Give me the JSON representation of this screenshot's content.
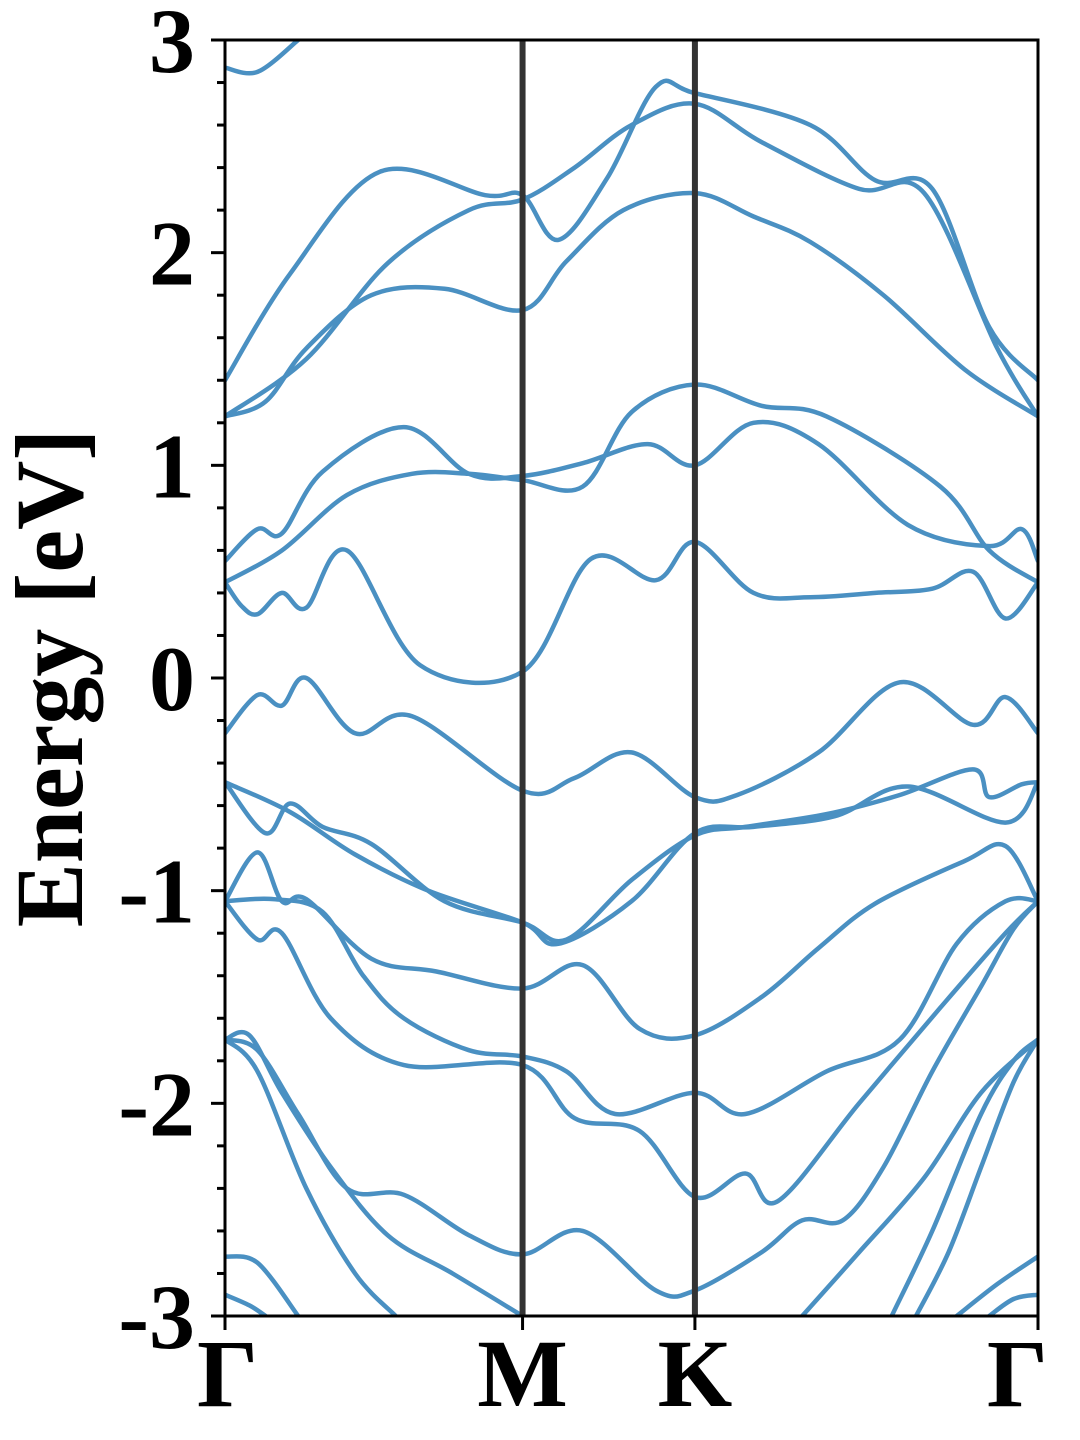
{
  "chart_data": {
    "type": "line",
    "title": "",
    "xlabel": "",
    "ylabel": "Energy [eV]",
    "ylim": [
      -3,
      3
    ],
    "xlim": [
      0,
      1
    ],
    "x_ticks": [
      {
        "label": "Γ",
        "value": 0.0
      },
      {
        "label": "M",
        "value": 0.366
      },
      {
        "label": "K",
        "value": 0.578
      },
      {
        "label": "Γ",
        "value": 1.0
      }
    ],
    "y_ticks": [
      {
        "label": "3",
        "value": 3
      },
      {
        "label": "2",
        "value": 2
      },
      {
        "label": "1",
        "value": 1
      },
      {
        "label": "0",
        "value": 0
      },
      {
        "label": "-1",
        "value": -1
      },
      {
        "label": "-2",
        "value": -2
      },
      {
        "label": "-3",
        "value": -3
      }
    ],
    "y_minor_step": 0.2,
    "grid": false,
    "colors": {
      "band": "#4a90c2",
      "kline": "#333333",
      "axis": "#000000"
    },
    "series": [
      {
        "values": [
          [
            0.0,
            2.87
          ],
          [
            0.04,
            2.85
          ],
          [
            0.09,
            3.0
          ]
        ]
      },
      {
        "values": [
          [
            0.0,
            1.4
          ],
          [
            0.08,
            1.9
          ],
          [
            0.19,
            2.38
          ],
          [
            0.32,
            2.27
          ],
          [
            0.366,
            2.27
          ],
          [
            0.41,
            2.06
          ],
          [
            0.47,
            2.35
          ],
          [
            0.53,
            2.78
          ],
          [
            0.578,
            2.75
          ],
          [
            0.72,
            2.6
          ],
          [
            0.8,
            2.34
          ],
          [
            0.87,
            2.3
          ],
          [
            0.94,
            1.65
          ],
          [
            1.0,
            1.4
          ]
        ]
      },
      {
        "values": [
          [
            0.0,
            1.23
          ],
          [
            0.1,
            1.5
          ],
          [
            0.2,
            1.95
          ],
          [
            0.3,
            2.2
          ],
          [
            0.366,
            2.25
          ],
          [
            0.43,
            2.4
          ],
          [
            0.5,
            2.6
          ],
          [
            0.578,
            2.7
          ],
          [
            0.66,
            2.52
          ],
          [
            0.78,
            2.3
          ],
          [
            0.86,
            2.28
          ],
          [
            0.95,
            1.55
          ],
          [
            1.0,
            1.23
          ]
        ]
      },
      {
        "values": [
          [
            0.0,
            1.23
          ],
          [
            0.05,
            1.3
          ],
          [
            0.1,
            1.55
          ],
          [
            0.18,
            1.8
          ],
          [
            0.27,
            1.83
          ],
          [
            0.366,
            1.73
          ],
          [
            0.42,
            1.96
          ],
          [
            0.49,
            2.2
          ],
          [
            0.578,
            2.28
          ],
          [
            0.65,
            2.17
          ],
          [
            0.72,
            2.05
          ],
          [
            0.81,
            1.8
          ],
          [
            0.91,
            1.45
          ],
          [
            1.0,
            1.23
          ]
        ]
      },
      {
        "values": [
          [
            0.0,
            0.55
          ],
          [
            0.04,
            0.7
          ],
          [
            0.07,
            0.68
          ],
          [
            0.12,
            0.97
          ],
          [
            0.22,
            1.18
          ],
          [
            0.3,
            0.96
          ],
          [
            0.366,
            0.95
          ],
          [
            0.44,
            1.01
          ],
          [
            0.52,
            1.1
          ],
          [
            0.578,
            1.0
          ],
          [
            0.65,
            1.2
          ],
          [
            0.73,
            1.1
          ],
          [
            0.84,
            0.72
          ],
          [
            0.94,
            0.62
          ],
          [
            0.98,
            0.7
          ],
          [
            1.0,
            0.55
          ]
        ]
      },
      {
        "values": [
          [
            0.0,
            0.45
          ],
          [
            0.07,
            0.6
          ],
          [
            0.15,
            0.86
          ],
          [
            0.23,
            0.96
          ],
          [
            0.3,
            0.96
          ],
          [
            0.366,
            0.93
          ],
          [
            0.44,
            0.9
          ],
          [
            0.5,
            1.25
          ],
          [
            0.578,
            1.38
          ],
          [
            0.66,
            1.28
          ],
          [
            0.74,
            1.23
          ],
          [
            0.88,
            0.9
          ],
          [
            0.94,
            0.6
          ],
          [
            1.0,
            0.45
          ]
        ]
      },
      {
        "values": [
          [
            0.0,
            0.45
          ],
          [
            0.02,
            0.34
          ],
          [
            0.04,
            0.3
          ],
          [
            0.07,
            0.4
          ],
          [
            0.1,
            0.33
          ],
          [
            0.15,
            0.6
          ],
          [
            0.24,
            0.06
          ],
          [
            0.366,
            0.03
          ],
          [
            0.45,
            0.56
          ],
          [
            0.53,
            0.46
          ],
          [
            0.578,
            0.64
          ],
          [
            0.65,
            0.4
          ],
          [
            0.72,
            0.38
          ],
          [
            0.8,
            0.4
          ],
          [
            0.87,
            0.42
          ],
          [
            0.92,
            0.5
          ],
          [
            0.96,
            0.28
          ],
          [
            1.0,
            0.45
          ]
        ]
      },
      {
        "values": [
          [
            0.0,
            -0.26
          ],
          [
            0.04,
            -0.08
          ],
          [
            0.07,
            -0.13
          ],
          [
            0.1,
            0.0
          ],
          [
            0.16,
            -0.26
          ],
          [
            0.23,
            -0.18
          ],
          [
            0.366,
            -0.53
          ],
          [
            0.43,
            -0.47
          ],
          [
            0.5,
            -0.35
          ],
          [
            0.578,
            -0.56
          ],
          [
            0.63,
            -0.55
          ],
          [
            0.73,
            -0.35
          ],
          [
            0.83,
            -0.02
          ],
          [
            0.92,
            -0.22
          ],
          [
            0.96,
            -0.09
          ],
          [
            1.0,
            -0.26
          ]
        ]
      },
      {
        "values": [
          [
            0.0,
            -0.49
          ],
          [
            0.05,
            -0.73
          ],
          [
            0.08,
            -0.59
          ],
          [
            0.12,
            -0.7
          ],
          [
            0.18,
            -0.78
          ],
          [
            0.27,
            -1.05
          ],
          [
            0.366,
            -1.15
          ],
          [
            0.42,
            -1.23
          ],
          [
            0.5,
            -0.95
          ],
          [
            0.578,
            -0.74
          ],
          [
            0.64,
            -0.7
          ],
          [
            0.74,
            -0.64
          ],
          [
            0.83,
            -0.55
          ],
          [
            0.92,
            -0.43
          ],
          [
            0.94,
            -0.56
          ],
          [
            0.98,
            -0.5
          ],
          [
            1.0,
            -0.49
          ]
        ]
      },
      {
        "values": [
          [
            0.0,
            -0.49
          ],
          [
            0.08,
            -0.63
          ],
          [
            0.16,
            -0.83
          ],
          [
            0.25,
            -1.0
          ],
          [
            0.366,
            -1.15
          ],
          [
            0.41,
            -1.25
          ],
          [
            0.5,
            -1.05
          ],
          [
            0.578,
            -0.73
          ],
          [
            0.65,
            -0.7
          ],
          [
            0.75,
            -0.65
          ],
          [
            0.84,
            -0.51
          ],
          [
            0.96,
            -0.68
          ],
          [
            1.0,
            -0.49
          ]
        ]
      },
      {
        "values": [
          [
            0.0,
            -1.05
          ],
          [
            0.04,
            -0.82
          ],
          [
            0.07,
            -1.05
          ],
          [
            0.1,
            -1.04
          ],
          [
            0.18,
            -1.32
          ],
          [
            0.26,
            -1.38
          ],
          [
            0.366,
            -1.46
          ],
          [
            0.44,
            -1.35
          ],
          [
            0.51,
            -1.65
          ],
          [
            0.578,
            -1.68
          ],
          [
            0.66,
            -1.5
          ],
          [
            0.73,
            -1.27
          ],
          [
            0.8,
            -1.06
          ],
          [
            0.91,
            -0.86
          ],
          [
            0.96,
            -0.79
          ],
          [
            1.0,
            -1.05
          ]
        ]
      },
      {
        "values": [
          [
            0.0,
            -1.05
          ],
          [
            0.06,
            -1.04
          ],
          [
            0.12,
            -1.1
          ],
          [
            0.17,
            -1.4
          ],
          [
            0.22,
            -1.6
          ],
          [
            0.3,
            -1.75
          ],
          [
            0.366,
            -1.78
          ],
          [
            0.42,
            -1.85
          ],
          [
            0.48,
            -2.05
          ],
          [
            0.578,
            -1.95
          ],
          [
            0.64,
            -2.05
          ],
          [
            0.74,
            -1.85
          ],
          [
            0.83,
            -1.7
          ],
          [
            0.9,
            -1.25
          ],
          [
            0.96,
            -1.05
          ],
          [
            1.0,
            -1.05
          ]
        ]
      },
      {
        "values": [
          [
            0.0,
            -1.05
          ],
          [
            0.04,
            -1.23
          ],
          [
            0.07,
            -1.2
          ],
          [
            0.13,
            -1.6
          ],
          [
            0.22,
            -1.82
          ],
          [
            0.366,
            -1.82
          ],
          [
            0.43,
            -2.07
          ],
          [
            0.51,
            -2.13
          ],
          [
            0.578,
            -2.44
          ],
          [
            0.64,
            -2.33
          ],
          [
            0.68,
            -2.46
          ],
          [
            0.78,
            -2.0
          ],
          [
            0.88,
            -1.55
          ],
          [
            0.96,
            -1.2
          ],
          [
            1.0,
            -1.05
          ]
        ]
      },
      {
        "values": [
          [
            0.0,
            -1.7
          ],
          [
            0.03,
            -1.68
          ],
          [
            0.07,
            -1.95
          ],
          [
            0.13,
            -2.3
          ],
          [
            0.2,
            -2.62
          ],
          [
            0.28,
            -2.8
          ],
          [
            0.366,
            -3.0
          ]
        ]
      },
      {
        "values": [
          [
            0.0,
            -1.7
          ],
          [
            0.04,
            -1.75
          ],
          [
            0.09,
            -2.05
          ],
          [
            0.15,
            -2.4
          ],
          [
            0.22,
            -2.43
          ],
          [
            0.3,
            -2.62
          ],
          [
            0.366,
            -2.71
          ],
          [
            0.44,
            -2.6
          ],
          [
            0.53,
            -2.88
          ],
          [
            0.578,
            -2.88
          ],
          [
            0.66,
            -2.7
          ],
          [
            0.71,
            -2.55
          ],
          [
            0.76,
            -2.55
          ],
          [
            0.81,
            -2.3
          ],
          [
            0.87,
            -1.85
          ],
          [
            0.93,
            -1.45
          ],
          [
            0.97,
            -1.18
          ],
          [
            1.0,
            -1.05
          ]
        ]
      },
      {
        "values": [
          [
            0.0,
            -1.7
          ],
          [
            0.04,
            -1.85
          ],
          [
            0.1,
            -2.4
          ],
          [
            0.16,
            -2.8
          ],
          [
            0.21,
            -3.0
          ]
        ]
      },
      {
        "values": [
          [
            0.71,
            -3.0
          ],
          [
            0.78,
            -2.7
          ],
          [
            0.86,
            -2.35
          ],
          [
            0.93,
            -1.95
          ],
          [
            1.0,
            -1.7
          ]
        ]
      },
      {
        "values": [
          [
            0.82,
            -3.0
          ],
          [
            0.87,
            -2.6
          ],
          [
            0.93,
            -2.05
          ],
          [
            0.97,
            -1.8
          ],
          [
            1.0,
            -1.7
          ]
        ]
      },
      {
        "values": [
          [
            0.85,
            -3.0
          ],
          [
            0.89,
            -2.7
          ],
          [
            0.93,
            -2.3
          ],
          [
            0.97,
            -1.9
          ],
          [
            1.0,
            -1.7
          ]
        ]
      },
      {
        "values": [
          [
            0.0,
            -2.72
          ],
          [
            0.04,
            -2.75
          ],
          [
            0.09,
            -3.0
          ]
        ]
      },
      {
        "values": [
          [
            0.0,
            -2.9
          ],
          [
            0.03,
            -2.95
          ],
          [
            0.05,
            -3.0
          ]
        ]
      },
      {
        "values": [
          [
            0.9,
            -3.0
          ],
          [
            0.95,
            -2.85
          ],
          [
            1.0,
            -2.72
          ]
        ]
      },
      {
        "values": [
          [
            0.94,
            -3.0
          ],
          [
            0.97,
            -2.92
          ],
          [
            1.0,
            -2.9
          ]
        ]
      }
    ]
  }
}
